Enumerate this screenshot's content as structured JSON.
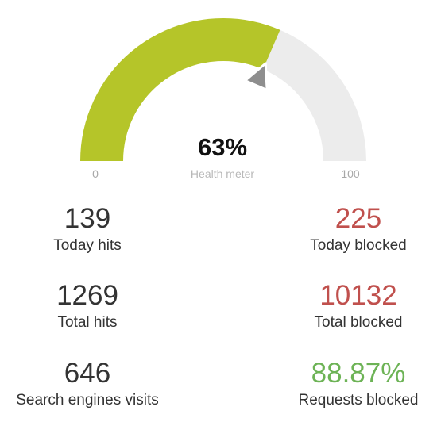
{
  "gauge": {
    "value": 63,
    "percent_text": "63%",
    "caption": "Health meter",
    "min_label": "0",
    "max_label": "100",
    "fill_color": "#b5c529",
    "track_color": "#ececec",
    "needle_color": "#8e8e8e"
  },
  "stats": {
    "today_hits": {
      "value": "139",
      "label": "Today hits"
    },
    "total_hits": {
      "value": "1269",
      "label": "Total hits"
    },
    "search_engines": {
      "value": "646",
      "label": "Search engines visits"
    },
    "today_blocked": {
      "value": "225",
      "label": "Today blocked"
    },
    "total_blocked": {
      "value": "10132",
      "label": "Total blocked"
    },
    "requests_blocked": {
      "value": "88.87%",
      "label": "Requests blocked"
    }
  },
  "colors": {
    "neutral_text": "#333333",
    "blocked_red": "#c0504d",
    "success_green": "#6db356"
  }
}
